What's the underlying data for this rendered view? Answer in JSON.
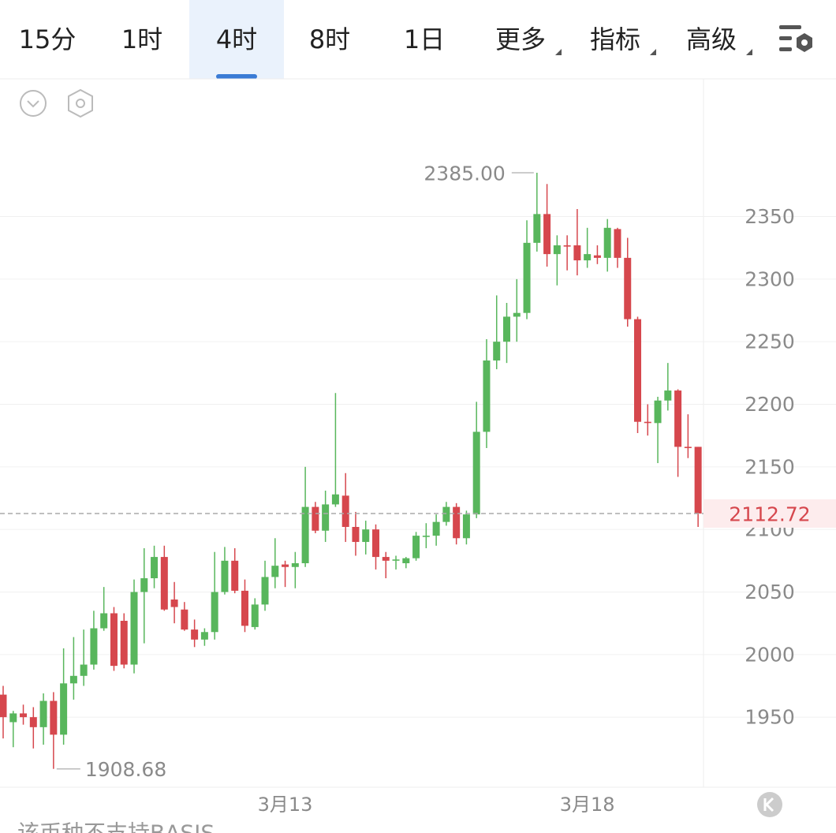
{
  "tabs": [
    "15分",
    "1时",
    "4时",
    "8时",
    "1日",
    "更多",
    "指标",
    "高级"
  ],
  "active_tab": 2,
  "footer_text": "该币种不支持BASIS",
  "chart_data": {
    "type": "candlestick",
    "categories": [
      null,
      null,
      null,
      null,
      null,
      null,
      null,
      null,
      null,
      null,
      null,
      null,
      null,
      null,
      null,
      null,
      null,
      null,
      null,
      null,
      null,
      null,
      null,
      null,
      null,
      null,
      null,
      null,
      "3月13",
      null,
      null,
      null,
      null,
      null,
      null,
      null,
      null,
      null,
      null,
      null,
      null,
      null,
      null,
      null,
      null,
      null,
      null,
      null,
      null,
      null,
      null,
      null,
      null,
      null,
      null,
      null,
      null,
      null,
      "3月18",
      null,
      null,
      null,
      null,
      null,
      null,
      null,
      null,
      null,
      null,
      null
    ],
    "open": [
      1968,
      1946,
      1953,
      1950,
      1942,
      1963,
      1936,
      1977,
      1983,
      1992,
      2021,
      2033,
      2027,
      1992,
      2050,
      2061,
      2078,
      2044,
      2036,
      2020,
      2012,
      2018,
      2050,
      2075,
      2051,
      2022,
      2040,
      2062,
      2072,
      2070,
      2073,
      2118,
      2099,
      2120,
      2127,
      2102,
      2090,
      2100,
      2078,
      2075,
      2073,
      2077,
      2094,
      2095,
      2106,
      2118,
      2093,
      2112,
      2178,
      2235,
      2250,
      2270,
      2273,
      2329,
      2352,
      2320,
      2327,
      2327,
      2315,
      2319,
      2317,
      2340,
      2317,
      2268,
      2186,
      2185,
      2203,
      2211,
      2166,
      2166
    ],
    "high": [
      1975,
      1955,
      1960,
      1958,
      1969,
      1970,
      2005,
      2014,
      2020,
      2035,
      2054,
      2038,
      2033,
      2060,
      2085,
      2087,
      2087,
      2058,
      2042,
      2028,
      2021,
      2082,
      2086,
      2085,
      2060,
      2045,
      2075,
      2093,
      2075,
      2082,
      2150,
      2122,
      2131,
      2209,
      2145,
      2114,
      2107,
      2104,
      2082,
      2079,
      2078,
      2098,
      2105,
      2112,
      2122,
      2121,
      2115,
      2202,
      2252,
      2287,
      2281,
      2300,
      2347,
      2385,
      2376,
      2335,
      2335,
      2356,
      2341,
      2327,
      2348,
      2341,
      2333,
      2270,
      2200,
      2206,
      2233,
      2212,
      2192,
      2166
    ],
    "low": [
      1933,
      1926,
      1944,
      1925,
      1928,
      1908.68,
      1928,
      1964,
      1975,
      1988,
      2019,
      1987,
      1989,
      1985,
      2009,
      2053,
      2035,
      2025,
      2019,
      2006,
      2007,
      2012,
      2048,
      2049,
      2018,
      2020,
      2035,
      2053,
      2054,
      2053,
      2070,
      2097,
      2090,
      2118,
      2090,
      2079,
      2080,
      2068,
      2061,
      2068,
      2069,
      2075,
      2085,
      2087,
      2103,
      2088,
      2088,
      2109,
      2165,
      2228,
      2233,
      2250,
      2268,
      2322,
      2310,
      2295,
      2307,
      2303,
      2309,
      2312,
      2306,
      2309,
      2262,
      2177,
      2175,
      2153,
      2195,
      2142,
      2157,
      2102
    ],
    "close": [
      1950,
      1953,
      1950,
      1942,
      1963,
      1936,
      1977,
      1983,
      1992,
      2021,
      2033,
      1991,
      1992,
      2050,
      2061,
      2078,
      2036,
      2038,
      2020,
      2012,
      2018,
      2050,
      2075,
      2051,
      2023,
      2040,
      2062,
      2071,
      2070,
      2073,
      2118,
      2099,
      2120,
      2128,
      2102,
      2090,
      2100,
      2078,
      2075,
      2076,
      2077,
      2095,
      2095,
      2106,
      2118,
      2093,
      2112,
      2178,
      2235,
      2250,
      2270,
      2273,
      2329,
      2352,
      2320,
      2327,
      2326,
      2315,
      2320,
      2317,
      2341,
      2317,
      2268,
      2186,
      2185,
      2203,
      2211,
      2166,
      2165,
      2112.72
    ],
    "up_color": "#58b65c",
    "down_color": "#d6474d",
    "ylim": [
      1894,
      2460
    ],
    "yticks": [
      1950,
      2000,
      2050,
      2100,
      2150,
      2200,
      2250,
      2300,
      2350
    ],
    "grid": true,
    "high_label": {
      "value": 2385,
      "label": "2385.00"
    },
    "low_label": 1908.68,
    "last_price": 2112.72
  }
}
